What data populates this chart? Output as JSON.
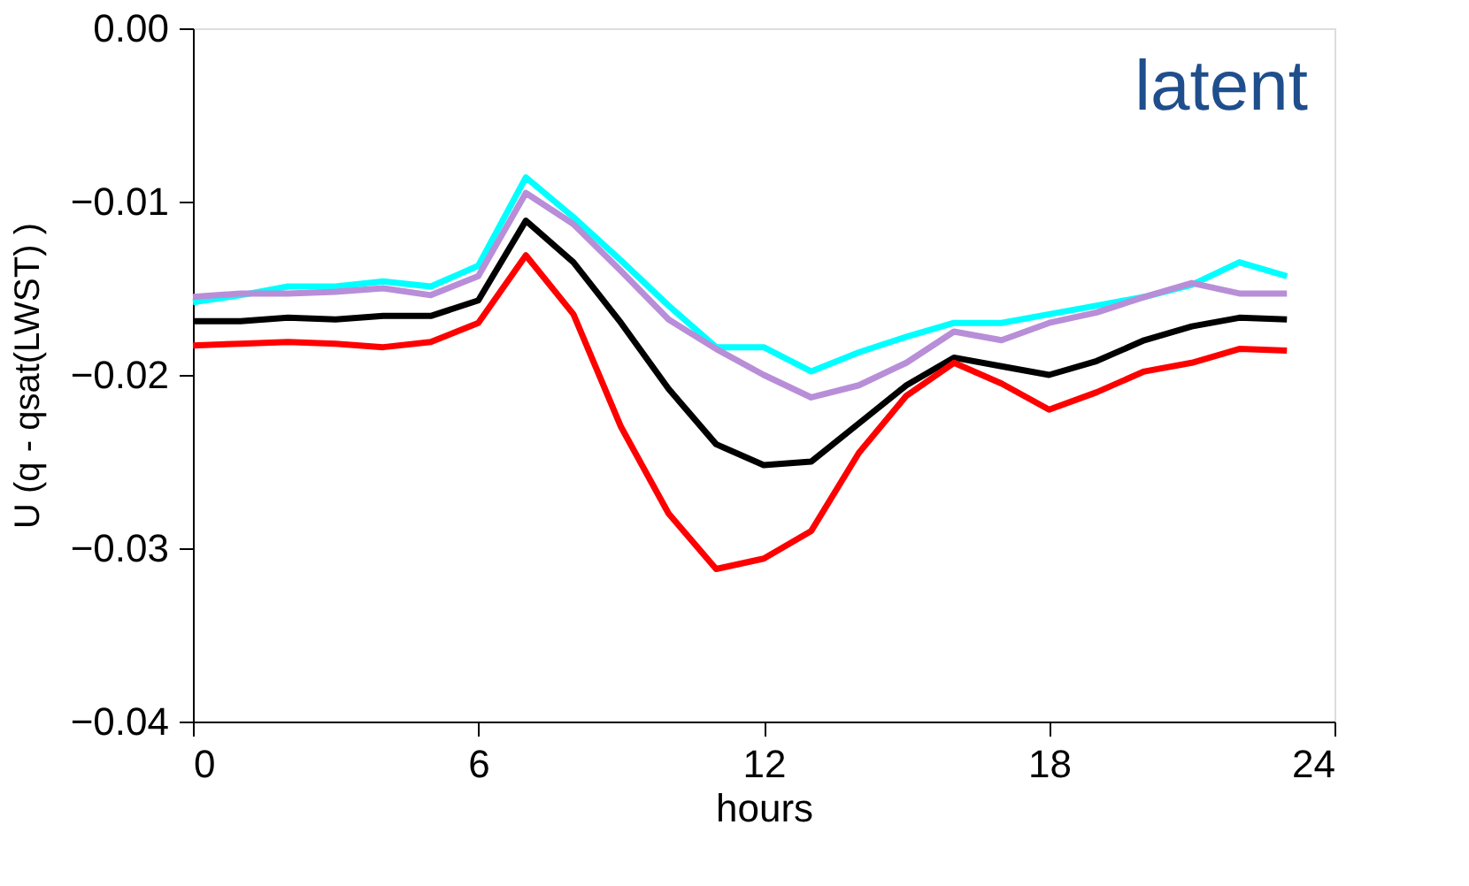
{
  "chart_data": {
    "type": "line",
    "xlabel": "hours",
    "ylabel": "U (q - qsat(LWST) )",
    "annotations": [
      "latent"
    ],
    "x": [
      0,
      1,
      2,
      3,
      4,
      5,
      6,
      7,
      8,
      9,
      10,
      11,
      12,
      13,
      14,
      15,
      16,
      17,
      18,
      19,
      20,
      21,
      22,
      23
    ],
    "series": [
      {
        "color": "#00ffff",
        "values": [
          -0.0158,
          -0.0154,
          -0.0149,
          -0.0149,
          -0.0146,
          -0.0149,
          -0.0137,
          -0.0086,
          -0.0109,
          -0.0134,
          -0.016,
          -0.0184,
          -0.0184,
          -0.0198,
          -0.0187,
          -0.0178,
          -0.017,
          -0.017,
          -0.0165,
          -0.016,
          -0.0155,
          -0.0148,
          -0.0135,
          -0.0143
        ]
      },
      {
        "color": "#b88ed8",
        "values": [
          -0.0155,
          -0.0153,
          -0.0153,
          -0.0152,
          -0.015,
          -0.0154,
          -0.0143,
          -0.0095,
          -0.0113,
          -0.014,
          -0.0168,
          -0.0185,
          -0.02,
          -0.0213,
          -0.0206,
          -0.0193,
          -0.0175,
          -0.018,
          -0.017,
          -0.0164,
          -0.0155,
          -0.0147,
          -0.0153,
          -0.0153
        ]
      },
      {
        "color": "#000000",
        "values": [
          -0.0169,
          -0.0169,
          -0.0167,
          -0.0168,
          -0.0166,
          -0.0166,
          -0.0157,
          -0.0111,
          -0.0135,
          -0.017,
          -0.0208,
          -0.024,
          -0.0252,
          -0.025,
          -0.0228,
          -0.0206,
          -0.019,
          -0.0195,
          -0.02,
          -0.0192,
          -0.018,
          -0.0172,
          -0.0167,
          -0.0168
        ]
      },
      {
        "color": "#ff0000",
        "values": [
          -0.0183,
          -0.0182,
          -0.0181,
          -0.0182,
          -0.0184,
          -0.0181,
          -0.017,
          -0.0131,
          -0.0165,
          -0.023,
          -0.028,
          -0.0312,
          -0.0306,
          -0.029,
          -0.0245,
          -0.0212,
          -0.0193,
          -0.0205,
          -0.022,
          -0.021,
          -0.0198,
          -0.0193,
          -0.0185,
          -0.0186
        ]
      }
    ],
    "xlim": [
      0,
      24
    ],
    "xticks": [
      0,
      6,
      12,
      18,
      24
    ],
    "ylim": [
      -0.04,
      0.0
    ],
    "yticks": [
      {
        "value": -0.04,
        "label": "−0.04"
      },
      {
        "value": -0.03,
        "label": "−0.03"
      },
      {
        "value": -0.02,
        "label": "−0.02"
      },
      {
        "value": -0.01,
        "label": "−0.01"
      },
      {
        "value": 0.0,
        "label": "0.00"
      }
    ],
    "grid": false,
    "legend": false,
    "marker": "none",
    "line_style": "solid"
  }
}
